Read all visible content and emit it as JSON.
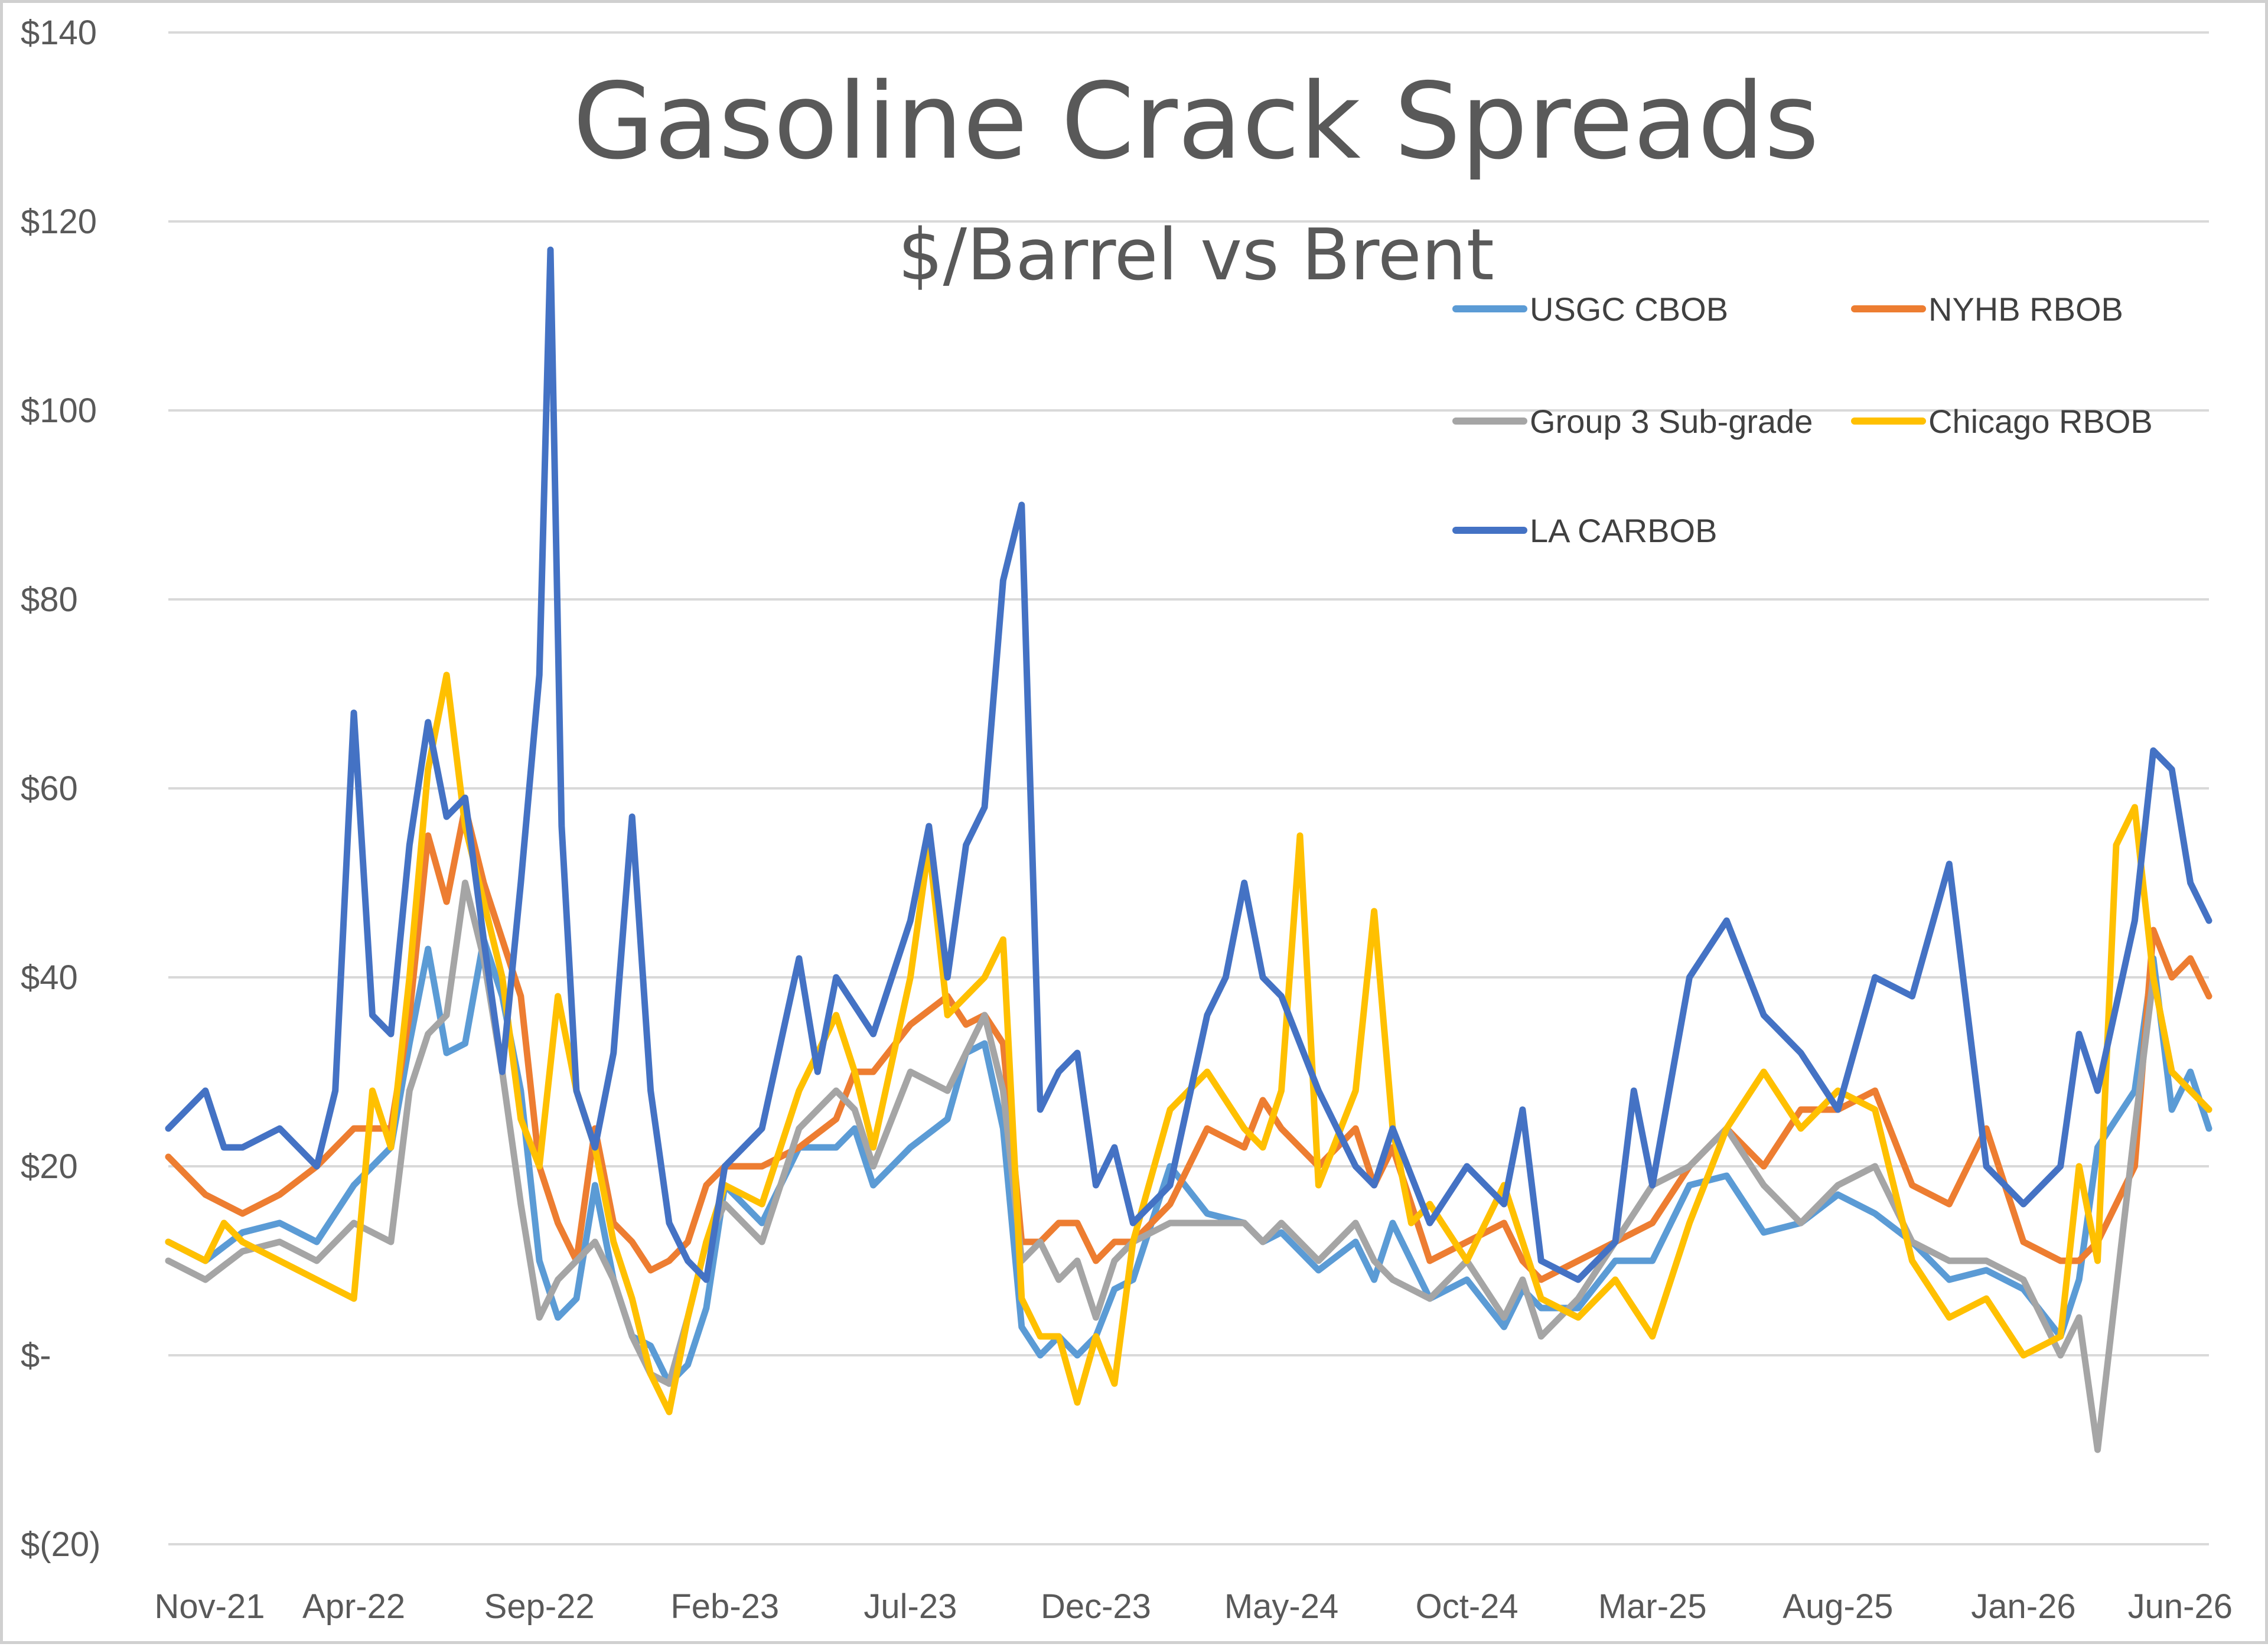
{
  "chart_data": {
    "type": "line",
    "title": "Gasoline Crack Spreads",
    "subtitle": "$/Barrel vs Brent",
    "xlabel": "",
    "ylabel": "",
    "ylim": [
      -20,
      140
    ],
    "y_ticks": [
      {
        "value": 140,
        "label": "$140"
      },
      {
        "value": 120,
        "label": "$120"
      },
      {
        "value": 100,
        "label": "$100"
      },
      {
        "value": 80,
        "label": "$80"
      },
      {
        "value": 60,
        "label": "$60"
      },
      {
        "value": 40,
        "label": "$40"
      },
      {
        "value": 20,
        "label": "$20"
      },
      {
        "value": 0,
        "label": "$-"
      },
      {
        "value": -20,
        "label": "$(20)"
      }
    ],
    "x_ticks": [
      {
        "value": 0,
        "label": "Nov-21"
      },
      {
        "value": 5,
        "label": "Apr-22"
      },
      {
        "value": 10,
        "label": "Sep-22"
      },
      {
        "value": 15,
        "label": "Feb-23"
      },
      {
        "value": 20,
        "label": "Jul-23"
      },
      {
        "value": 25,
        "label": "Dec-23"
      },
      {
        "value": 30,
        "label": "May-24"
      },
      {
        "value": 35,
        "label": "Oct-24"
      },
      {
        "value": 40,
        "label": "Mar-25"
      },
      {
        "value": 45,
        "label": "Aug-25"
      },
      {
        "value": 50,
        "label": "Jan-26"
      },
      {
        "value": 55,
        "label": "Jun-26"
      }
    ],
    "xlim": [
      0,
      55
    ],
    "grid": "horizontal",
    "legend_position": "top-right",
    "series": [
      {
        "name": "USGC CBOB",
        "color": "#5B9BD5",
        "x": [
          0,
          1,
          2,
          3,
          4,
          5,
          6,
          6.5,
          7,
          7.5,
          8,
          8.5,
          9,
          9.5,
          10,
          10.5,
          11,
          11.5,
          12,
          12.5,
          13,
          13.5,
          14,
          14.5,
          15,
          16,
          17,
          18,
          18.5,
          19,
          20,
          21,
          21.5,
          22,
          22.5,
          23,
          23.5,
          24,
          24.5,
          25,
          25.5,
          26,
          27,
          28,
          29,
          29.5,
          30,
          31,
          32,
          32.5,
          33,
          34,
          35,
          36,
          36.5,
          37,
          38,
          39,
          40,
          41,
          42,
          43,
          44,
          45,
          46,
          47,
          48,
          49,
          50,
          51,
          51.5,
          52,
          53,
          53.5,
          54,
          54.5,
          55
        ],
        "y": [
          12,
          10,
          13,
          14,
          12,
          18,
          22,
          33,
          43,
          32,
          33,
          44,
          38,
          28,
          10,
          4,
          6,
          18,
          8,
          2,
          1,
          -3,
          -1,
          5,
          18,
          14,
          22,
          22,
          24,
          18,
          22,
          25,
          32,
          33,
          24,
          3,
          0,
          2,
          0,
          2,
          7,
          8,
          20,
          15,
          14,
          12,
          13,
          9,
          12,
          8,
          14,
          6,
          8,
          3,
          7,
          5,
          5,
          10,
          10,
          18,
          19,
          13,
          14,
          17,
          15,
          12,
          8,
          9,
          7,
          2,
          8,
          22,
          28,
          42,
          26,
          30,
          24
        ]
      },
      {
        "name": "NYHB RBOB",
        "color": "#ED7D31",
        "x": [
          0,
          1,
          2,
          3,
          4,
          5,
          6,
          6.5,
          7,
          7.5,
          8,
          8.5,
          9,
          9.5,
          10,
          10.5,
          11,
          11.5,
          12,
          12.5,
          13,
          13.5,
          14,
          14.5,
          15,
          16,
          17,
          18,
          18.5,
          19,
          20,
          21,
          21.5,
          22,
          22.5,
          23,
          23.5,
          24,
          24.5,
          25,
          25.5,
          26,
          27,
          28,
          29,
          29.5,
          30,
          31,
          32,
          32.5,
          33,
          34,
          35,
          36,
          36.5,
          37,
          38,
          39,
          40,
          41,
          42,
          43,
          44,
          45,
          46,
          47,
          48,
          49,
          50,
          51,
          51.5,
          52,
          53,
          53.5,
          54,
          54.5,
          55
        ],
        "y": [
          21,
          17,
          15,
          17,
          20,
          24,
          24,
          36,
          55,
          48,
          58,
          50,
          44,
          38,
          20,
          14,
          10,
          24,
          14,
          12,
          9,
          10,
          12,
          18,
          20,
          20,
          22,
          25,
          30,
          30,
          35,
          38,
          35,
          36,
          33,
          12,
          12,
          14,
          14,
          10,
          12,
          12,
          16,
          24,
          22,
          27,
          24,
          20,
          24,
          18,
          22,
          10,
          12,
          14,
          10,
          8,
          10,
          12,
          14,
          20,
          24,
          20,
          26,
          26,
          28,
          18,
          16,
          24,
          12,
          10,
          10,
          12,
          20,
          45,
          40,
          42,
          38
        ]
      },
      {
        "name": "Group 3 Sub-grade",
        "color": "#A5A5A5",
        "x": [
          0,
          1,
          2,
          3,
          4,
          5,
          6,
          6.5,
          7,
          7.5,
          8,
          8.5,
          9,
          9.5,
          10,
          10.5,
          11,
          11.5,
          12,
          12.5,
          13,
          13.5,
          14,
          14.5,
          15,
          16,
          17,
          18,
          18.5,
          19,
          20,
          21,
          21.5,
          22,
          22.5,
          23,
          23.5,
          24,
          24.5,
          25,
          25.5,
          26,
          27,
          28,
          29,
          29.5,
          30,
          31,
          32,
          32.5,
          33,
          34,
          35,
          36,
          36.5,
          37,
          38,
          39,
          40,
          41,
          42,
          43,
          44,
          45,
          46,
          47,
          48,
          49,
          50,
          51,
          51.5,
          52,
          53,
          53.5,
          54,
          54.5,
          55
        ],
        "y": [
          10,
          8,
          11,
          12,
          10,
          14,
          12,
          28,
          34,
          36,
          50,
          42,
          30,
          16,
          4,
          8,
          10,
          12,
          8,
          2,
          -2,
          -3,
          4,
          12,
          16,
          12,
          24,
          28,
          26,
          20,
          30,
          28,
          32,
          36,
          28,
          10,
          12,
          8,
          10,
          4,
          10,
          12,
          14,
          14,
          14,
          12,
          14,
          10,
          14,
          10,
          8,
          6,
          10,
          4,
          8,
          2,
          6,
          12,
          18,
          20,
          24,
          18,
          14,
          18,
          20,
          12,
          10,
          10,
          8,
          0,
          4,
          -10,
          24,
          40,
          30,
          28,
          26
        ]
      },
      {
        "name": "Chicago RBOB",
        "color": "#FFC000",
        "x": [
          0,
          1,
          1.5,
          2,
          3,
          4,
          5,
          5.5,
          6,
          6.5,
          7,
          7.5,
          8,
          8.5,
          9,
          9.5,
          10,
          10.5,
          11,
          11.5,
          12,
          12.5,
          13,
          13.5,
          14,
          14.5,
          15,
          16,
          17,
          18,
          18.5,
          19,
          20,
          20.5,
          21,
          22,
          22.5,
          23,
          23.5,
          24,
          24.5,
          25,
          25.5,
          26,
          27,
          28,
          29,
          29.5,
          30,
          30.5,
          31,
          32,
          32.5,
          33,
          33.5,
          34,
          35,
          36,
          36.5,
          37,
          38,
          39,
          40,
          41,
          42,
          43,
          44,
          45,
          46,
          47,
          48,
          49,
          50,
          51,
          51.5,
          52,
          52.5,
          53,
          53.5,
          54,
          54.5,
          55
        ],
        "y": [
          12,
          10,
          14,
          12,
          10,
          8,
          6,
          28,
          22,
          40,
          62,
          72,
          56,
          48,
          40,
          25,
          20,
          38,
          28,
          22,
          12,
          6,
          -2,
          -6,
          4,
          12,
          18,
          16,
          28,
          36,
          30,
          22,
          40,
          54,
          36,
          40,
          44,
          6,
          2,
          2,
          -5,
          2,
          -3,
          12,
          26,
          30,
          24,
          22,
          28,
          55,
          18,
          28,
          47,
          24,
          14,
          16,
          10,
          18,
          12,
          6,
          4,
          8,
          2,
          14,
          24,
          30,
          24,
          28,
          26,
          10,
          4,
          6,
          0,
          2,
          20,
          10,
          54,
          58,
          40,
          30,
          28,
          26
        ]
      },
      {
        "name": "LA CARBOB",
        "color": "#4472C4",
        "x": [
          0,
          1,
          1.5,
          2,
          3,
          4,
          4.5,
          5,
          5.5,
          6,
          6.5,
          7,
          7.5,
          8,
          8.5,
          9,
          9.5,
          10,
          10.3,
          10.6,
          11,
          11.5,
          12,
          12.5,
          13,
          13.5,
          14,
          14.5,
          15,
          16,
          17,
          17.5,
          18,
          19,
          20,
          20.5,
          21,
          21.5,
          22,
          22.5,
          23,
          23.5,
          24,
          24.5,
          25,
          25.5,
          26,
          27,
          28,
          28.5,
          29,
          29.5,
          30,
          31,
          32,
          32.5,
          33,
          34,
          35,
          36,
          36.5,
          37,
          38,
          39,
          39.5,
          40,
          41,
          42,
          43,
          44,
          45,
          46,
          47,
          48,
          49,
          50,
          51,
          51.5,
          52,
          53,
          53.5,
          54,
          54.5,
          55
        ],
        "y": [
          24,
          28,
          22,
          22,
          24,
          20,
          28,
          68,
          36,
          34,
          54,
          67,
          57,
          59,
          44,
          30,
          50,
          72,
          117,
          56,
          28,
          22,
          32,
          57,
          28,
          14,
          10,
          8,
          20,
          24,
          42,
          30,
          40,
          34,
          46,
          56,
          40,
          54,
          58,
          82,
          90,
          26,
          30,
          32,
          18,
          22,
          14,
          18,
          36,
          40,
          50,
          40,
          38,
          28,
          20,
          18,
          24,
          14,
          20,
          16,
          26,
          10,
          8,
          12,
          28,
          18,
          40,
          46,
          36,
          32,
          26,
          40,
          38,
          52,
          20,
          16,
          20,
          34,
          28,
          46,
          64,
          62,
          50,
          46
        ]
      }
    ]
  }
}
